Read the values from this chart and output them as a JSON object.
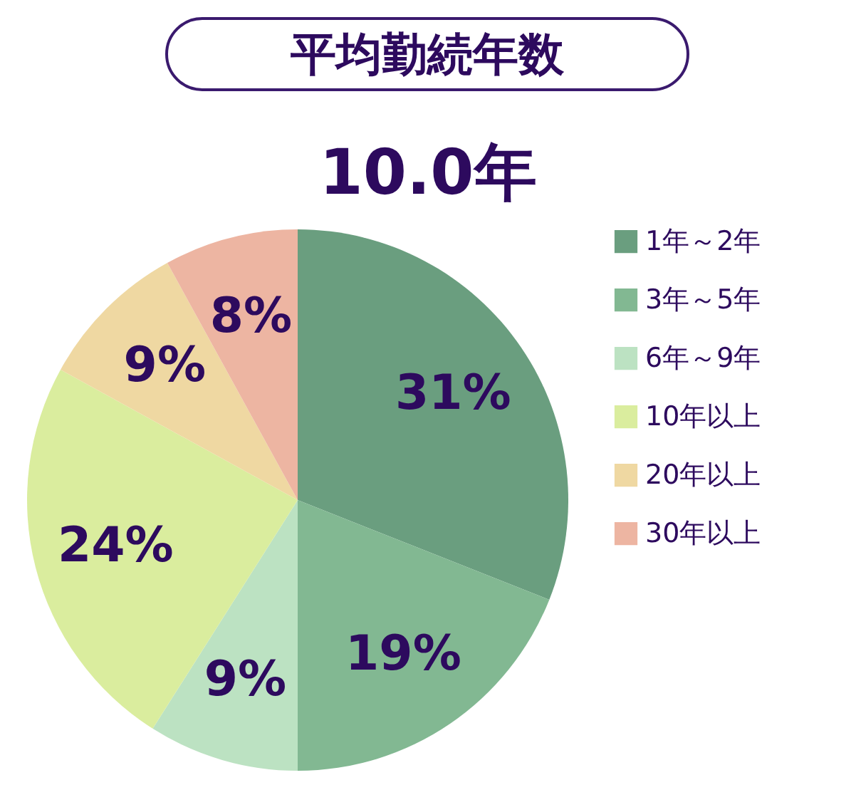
{
  "chart_data": {
    "type": "pie",
    "title": "平均勤続年数",
    "subtitle": "10.0年",
    "categories": [
      "1年～2年",
      "3年～5年",
      "6年～9年",
      "10年以上",
      "20年以上",
      "30年以上"
    ],
    "values": [
      31,
      19,
      9,
      24,
      9,
      8
    ],
    "colors": [
      "#6a9e7f",
      "#82b892",
      "#bce2c2",
      "#daed9e",
      "#efd8a2",
      "#edb5a2"
    ],
    "value_labels": [
      "31%",
      "19%",
      "9%",
      "24%",
      "9%",
      "8%"
    ],
    "legend": "right"
  }
}
